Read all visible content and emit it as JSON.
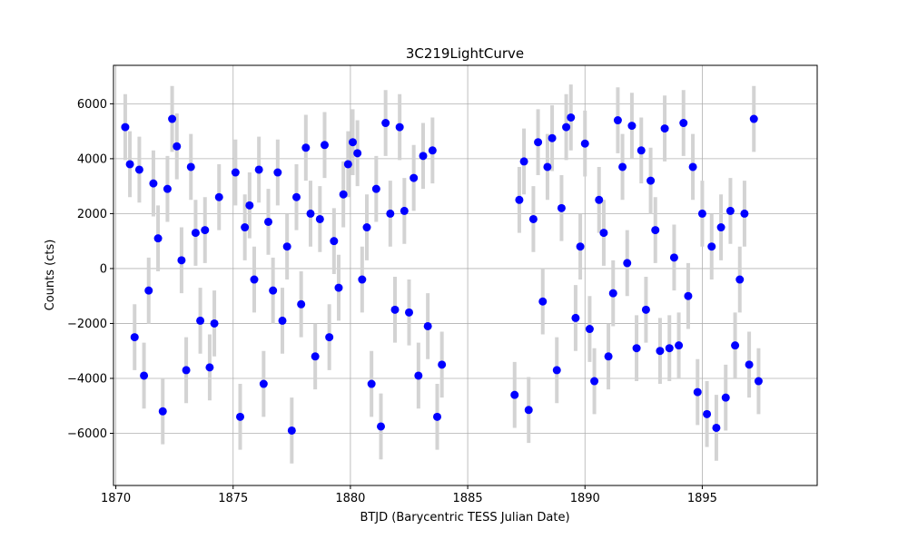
{
  "chart_data": {
    "type": "scatter",
    "title": "3C219LightCurve",
    "xlabel": "BTJD (Barycentric TESS Julian Date)",
    "ylabel": "Counts (cts)",
    "xlim": [
      1869.9,
      1899.9
    ],
    "ylim": [
      -7900,
      7400
    ],
    "xticks": [
      1870,
      1875,
      1880,
      1885,
      1890,
      1895
    ],
    "yticks": [
      -6000,
      -4000,
      -2000,
      0,
      2000,
      4000,
      6000
    ],
    "grid": true,
    "legend": "none",
    "point_color": "#0000ff",
    "errorbar_color": "#d3d3d3",
    "gap": [
      1884.1,
      1886.9
    ],
    "series": [
      {
        "segment": "sector-a",
        "x": [
          1870.4,
          1870.6,
          1870.8,
          1871.0,
          1871.2,
          1871.4,
          1871.6,
          1871.8,
          1872.0,
          1872.2,
          1872.4,
          1872.6,
          1872.8,
          1873.0,
          1873.2,
          1873.4,
          1873.6,
          1873.8,
          1874.0,
          1874.2,
          1874.4,
          1875.1,
          1875.3,
          1875.5,
          1875.7,
          1875.9,
          1876.1,
          1876.3,
          1876.5,
          1876.7,
          1876.9,
          1877.1,
          1877.3,
          1877.5,
          1877.7,
          1877.9,
          1878.1,
          1878.3,
          1878.5,
          1878.7,
          1878.9,
          1879.1,
          1879.3,
          1879.5,
          1879.7,
          1879.9,
          1880.1,
          1880.3,
          1880.5,
          1880.7,
          1880.9,
          1881.1,
          1881.3,
          1881.5,
          1881.7,
          1881.9,
          1882.1,
          1882.3,
          1882.5,
          1882.7,
          1882.9,
          1883.1,
          1883.3,
          1883.5,
          1883.7,
          1883.9
        ],
        "y": [
          5150,
          3800,
          -2500,
          3600,
          -3900,
          -800,
          3100,
          1100,
          -5200,
          2900,
          5450,
          4450,
          300,
          -3700,
          3700,
          1300,
          -1900,
          1400,
          -3600,
          -2000,
          2600,
          3500,
          -5400,
          1500,
          2300,
          -400,
          3600,
          -4200,
          1700,
          -800,
          3500,
          -1900,
          800,
          -5900,
          2600,
          -1300,
          4400,
          2000,
          -3200,
          1800,
          4500,
          -2500,
          1000,
          -700,
          2700,
          3800,
          4600,
          4200,
          -400,
          1500,
          -4200,
          2900,
          -5750,
          5300,
          2000,
          -1500,
          5150,
          2100,
          -1600,
          3300,
          -3900,
          4100,
          -2100,
          4300,
          -5400,
          -3500
        ]
      },
      {
        "segment": "sector-b",
        "x": [
          1887.0,
          1887.2,
          1887.4,
          1887.6,
          1887.8,
          1888.0,
          1888.2,
          1888.4,
          1888.6,
          1888.8,
          1889.0,
          1889.2,
          1889.4,
          1889.6,
          1889.8,
          1890.0,
          1890.2,
          1890.4,
          1890.6,
          1890.8,
          1891.0,
          1891.2,
          1891.4,
          1891.6,
          1891.8,
          1892.0,
          1892.2,
          1892.4,
          1892.6,
          1892.8,
          1893.0,
          1893.2,
          1893.4,
          1893.6,
          1893.8,
          1894.0,
          1894.2,
          1894.4,
          1894.6,
          1894.8,
          1895.0,
          1895.2,
          1895.4,
          1895.6,
          1895.8,
          1896.0,
          1896.2,
          1896.4,
          1896.6,
          1896.8,
          1897.0,
          1897.2,
          1897.4
        ],
        "y": [
          -4600,
          2500,
          3900,
          -5150,
          1800,
          4600,
          -1200,
          3700,
          4750,
          -3700,
          2200,
          5150,
          5500,
          -1800,
          800,
          4550,
          -2200,
          -4100,
          2500,
          1300,
          -3200,
          -900,
          5400,
          3700,
          200,
          5200,
          -2900,
          4300,
          -1500,
          3200,
          1400,
          -3000,
          5100,
          -2900,
          400,
          -2800,
          5300,
          -1000,
          3700,
          -4500,
          2000,
          -5300,
          800,
          -5800,
          1500,
          -4700,
          2100,
          -2800,
          -400,
          2000,
          -3500,
          5450,
          -4100
        ]
      }
    ]
  }
}
